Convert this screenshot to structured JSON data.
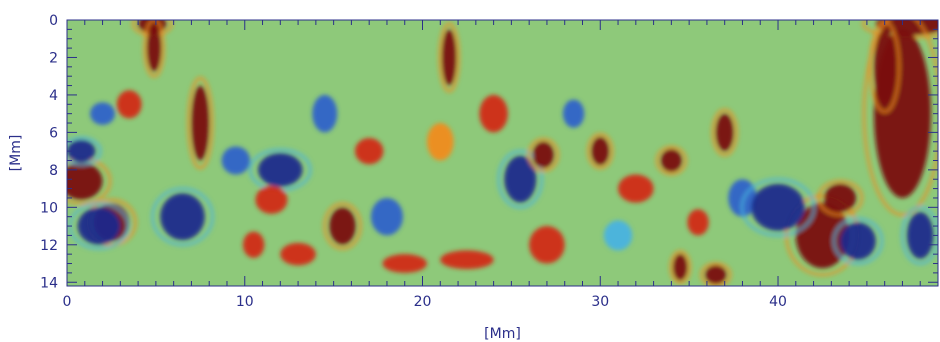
{
  "chart_data": {
    "type": "heatmap",
    "title": "",
    "xlabel": "[Mm]",
    "ylabel": "[Mm]",
    "xlim": [
      0,
      49
    ],
    "ylim": [
      0,
      14.2
    ],
    "y_inverted": true,
    "x_ticks": [
      0,
      10,
      20,
      30,
      40
    ],
    "y_ticks": [
      0,
      2,
      4,
      6,
      8,
      10,
      12,
      14
    ],
    "colormap": {
      "name": "blue-green-yellow-red diverging",
      "stops": [
        "#1b2a8c",
        "#2f63c9",
        "#48b3e0",
        "#8ec97a",
        "#f2ec3a",
        "#f08c1c",
        "#d12a16",
        "#7a1010"
      ],
      "background": "#8ec97a"
    },
    "features": [
      {
        "x": 4.8,
        "y": 0.2,
        "w": 1.6,
        "h": 1.0,
        "level": 1.0
      },
      {
        "x": 4.9,
        "y": 1.5,
        "w": 0.8,
        "h": 2.5,
        "level": 1.0
      },
      {
        "x": 47.5,
        "y": 0.2,
        "w": 4.0,
        "h": 1.2,
        "level": 1.0
      },
      {
        "x": 47.0,
        "y": 5.0,
        "w": 3.2,
        "h": 9.0,
        "level": 1.0
      },
      {
        "x": 46.0,
        "y": 2.5,
        "w": 1.2,
        "h": 4.0,
        "level": 0.9
      },
      {
        "x": 42.5,
        "y": 11.5,
        "w": 3.0,
        "h": 3.5,
        "level": 1.0
      },
      {
        "x": 36.5,
        "y": 13.6,
        "w": 1.2,
        "h": 1.0,
        "level": 1.0
      },
      {
        "x": 34.5,
        "y": 13.2,
        "w": 0.8,
        "h": 1.4,
        "level": 0.9
      },
      {
        "x": 0.8,
        "y": 8.6,
        "w": 2.4,
        "h": 2.0,
        "level": 1.0
      },
      {
        "x": 2.5,
        "y": 10.8,
        "w": 2.0,
        "h": 2.0,
        "level": 0.9
      },
      {
        "x": 1.8,
        "y": 11.0,
        "w": 2.4,
        "h": 2.0,
        "level": -1.0
      },
      {
        "x": 0.8,
        "y": 7.0,
        "w": 1.6,
        "h": 1.2,
        "level": -0.9
      },
      {
        "x": 6.5,
        "y": 10.5,
        "w": 2.5,
        "h": 2.5,
        "level": -0.9
      },
      {
        "x": 7.5,
        "y": 5.5,
        "w": 1.0,
        "h": 4.0,
        "level": 0.9
      },
      {
        "x": 9.5,
        "y": 7.5,
        "w": 1.6,
        "h": 1.5,
        "level": -0.8
      },
      {
        "x": 12.0,
        "y": 8.0,
        "w": 2.5,
        "h": 1.8,
        "level": -0.9
      },
      {
        "x": 11.5,
        "y": 9.6,
        "w": 1.8,
        "h": 1.5,
        "level": 0.8
      },
      {
        "x": 13.0,
        "y": 12.5,
        "w": 2.0,
        "h": 1.2,
        "level": 0.6
      },
      {
        "x": 15.5,
        "y": 11.0,
        "w": 1.5,
        "h": 2.0,
        "level": 0.9
      },
      {
        "x": 18.0,
        "y": 10.5,
        "w": 1.8,
        "h": 2.0,
        "level": -0.6
      },
      {
        "x": 19.0,
        "y": 13.0,
        "w": 2.5,
        "h": 1.0,
        "level": 0.7
      },
      {
        "x": 22.5,
        "y": 12.8,
        "w": 3.0,
        "h": 1.0,
        "level": 0.6
      },
      {
        "x": 21.0,
        "y": 6.5,
        "w": 1.5,
        "h": 2.0,
        "level": 0.5
      },
      {
        "x": 21.5,
        "y": 2.0,
        "w": 0.8,
        "h": 3.0,
        "level": 0.9
      },
      {
        "x": 24.0,
        "y": 5.0,
        "w": 1.6,
        "h": 2.0,
        "level": 0.8
      },
      {
        "x": 25.5,
        "y": 8.5,
        "w": 1.8,
        "h": 2.5,
        "level": -0.9
      },
      {
        "x": 26.8,
        "y": 7.2,
        "w": 1.2,
        "h": 1.4,
        "level": 1.0
      },
      {
        "x": 27.0,
        "y": 12.0,
        "w": 2.0,
        "h": 2.0,
        "level": 0.8
      },
      {
        "x": 30.0,
        "y": 7.0,
        "w": 1.0,
        "h": 1.5,
        "level": 1.0
      },
      {
        "x": 32.0,
        "y": 9.0,
        "w": 2.0,
        "h": 1.5,
        "level": 0.7
      },
      {
        "x": 34.0,
        "y": 7.5,
        "w": 1.2,
        "h": 1.2,
        "level": 0.9
      },
      {
        "x": 37.0,
        "y": 6.0,
        "w": 1.0,
        "h": 2.0,
        "level": 0.9
      },
      {
        "x": 38.0,
        "y": 9.5,
        "w": 1.6,
        "h": 2.0,
        "level": -0.7
      },
      {
        "x": 40.0,
        "y": 10.0,
        "w": 3.0,
        "h": 2.5,
        "level": -1.0
      },
      {
        "x": 43.5,
        "y": 9.5,
        "w": 1.8,
        "h": 1.5,
        "level": 1.0
      },
      {
        "x": 44.5,
        "y": 11.8,
        "w": 2.0,
        "h": 2.0,
        "level": -1.0
      },
      {
        "x": 48.0,
        "y": 11.5,
        "w": 1.5,
        "h": 2.5,
        "level": -0.9
      },
      {
        "x": 14.5,
        "y": 5.0,
        "w": 1.4,
        "h": 2.0,
        "level": -0.6
      },
      {
        "x": 17.0,
        "y": 7.0,
        "w": 1.6,
        "h": 1.4,
        "level": 0.6
      },
      {
        "x": 28.5,
        "y": 5.0,
        "w": 1.2,
        "h": 1.5,
        "level": -0.6
      },
      {
        "x": 35.5,
        "y": 10.8,
        "w": 1.2,
        "h": 1.4,
        "level": 0.8
      },
      {
        "x": 3.5,
        "y": 4.5,
        "w": 1.4,
        "h": 1.5,
        "level": 0.7
      },
      {
        "x": 2.0,
        "y": 5.0,
        "w": 1.4,
        "h": 1.2,
        "level": -0.7
      },
      {
        "x": 10.5,
        "y": 12.0,
        "w": 1.2,
        "h": 1.4,
        "level": 0.8
      },
      {
        "x": 31.0,
        "y": 11.5,
        "w": 1.6,
        "h": 1.6,
        "level": -0.5
      }
    ]
  }
}
